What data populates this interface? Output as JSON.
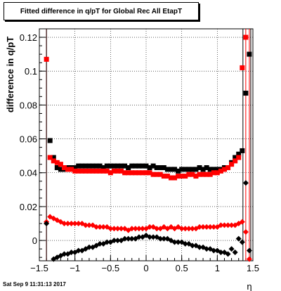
{
  "footer": {
    "timestamp": "Sat Sep  9 11:31:13 2017"
  },
  "chart_data": {
    "type": "scatter",
    "title": "Fitted difference in q/pT for Global Rec All EtapT",
    "xlabel": "η",
    "ylabel": "difference in q/pT",
    "xlim": [
      -1.5,
      1.5
    ],
    "ylim": [
      -0.012,
      0.125
    ],
    "x_ticks": [
      "−1.5",
      "−1",
      "−0.5",
      "0",
      "0.5",
      "1",
      "1.5"
    ],
    "x_tick_values": [
      -1.5,
      -1,
      -0.5,
      0,
      0.5,
      1,
      1.5
    ],
    "y_ticks": [
      "0",
      "0.02",
      "0.04",
      "0.06",
      "0.08",
      "0.1",
      "0.12"
    ],
    "y_tick_values": [
      0,
      0.02,
      0.04,
      0.06,
      0.08,
      0.1,
      0.12
    ],
    "grid": true,
    "colors": {
      "black": "#000000",
      "red": "#ff0000"
    },
    "series": [
      {
        "marker": "square",
        "color": "#000000",
        "x": [
          -1.35,
          -1.3,
          -1.25,
          -1.2,
          -1.15,
          -1.1,
          -1.05,
          -1.0,
          -0.95,
          -0.9,
          -0.85,
          -0.8,
          -0.75,
          -0.7,
          -0.65,
          -0.6,
          -0.55,
          -0.5,
          -0.45,
          -0.4,
          -0.35,
          -0.3,
          -0.25,
          -0.2,
          -0.15,
          -0.1,
          -0.05,
          0.0,
          0.05,
          0.1,
          0.15,
          0.2,
          0.25,
          0.3,
          0.35,
          0.4,
          0.45,
          0.5,
          0.55,
          0.6,
          0.65,
          0.7,
          0.75,
          0.8,
          0.85,
          0.9,
          0.95,
          1.0,
          1.05,
          1.1,
          1.15,
          1.2,
          1.25,
          1.3,
          1.35,
          1.4,
          1.45
        ],
        "y": [
          0.059,
          0.049,
          0.043,
          0.042,
          0.042,
          0.043,
          0.043,
          0.043,
          0.044,
          0.044,
          0.044,
          0.044,
          0.044,
          0.044,
          0.044,
          0.043,
          0.044,
          0.044,
          0.044,
          0.044,
          0.044,
          0.044,
          0.043,
          0.044,
          0.044,
          0.044,
          0.044,
          0.044,
          0.043,
          0.044,
          0.043,
          0.043,
          0.043,
          0.042,
          0.042,
          0.042,
          0.041,
          0.042,
          0.042,
          0.042,
          0.042,
          0.042,
          0.043,
          0.042,
          0.043,
          0.042,
          0.042,
          0.042,
          0.042,
          0.043,
          0.043,
          0.046,
          0.049,
          0.051,
          0.053,
          0.087,
          0.11
        ]
      },
      {
        "marker": "square",
        "color": "#ff0000",
        "x": [
          -1.4,
          -1.35,
          -1.3,
          -1.25,
          -1.2,
          -1.15,
          -1.1,
          -1.05,
          -1.0,
          -0.95,
          -0.9,
          -0.85,
          -0.8,
          -0.75,
          -0.7,
          -0.65,
          -0.6,
          -0.55,
          -0.5,
          -0.45,
          -0.4,
          -0.35,
          -0.3,
          -0.25,
          -0.2,
          -0.15,
          -0.1,
          -0.05,
          0.0,
          0.05,
          0.1,
          0.15,
          0.2,
          0.25,
          0.3,
          0.35,
          0.4,
          0.45,
          0.5,
          0.55,
          0.6,
          0.65,
          0.7,
          0.75,
          0.8,
          0.85,
          0.9,
          0.95,
          1.0,
          1.05,
          1.1,
          1.15,
          1.2,
          1.25,
          1.3,
          1.35,
          1.4
        ],
        "y": [
          0.107,
          0.049,
          0.047,
          0.046,
          0.045,
          0.043,
          0.042,
          0.042,
          0.041,
          0.041,
          0.041,
          0.041,
          0.041,
          0.041,
          0.041,
          0.041,
          0.041,
          0.041,
          0.04,
          0.041,
          0.041,
          0.041,
          0.04,
          0.04,
          0.04,
          0.04,
          0.04,
          0.04,
          0.04,
          0.04,
          0.039,
          0.039,
          0.039,
          0.038,
          0.038,
          0.037,
          0.037,
          0.038,
          0.038,
          0.038,
          0.039,
          0.039,
          0.038,
          0.039,
          0.039,
          0.039,
          0.039,
          0.04,
          0.04,
          0.041,
          0.042,
          0.043,
          0.045,
          0.047,
          0.049,
          0.102,
          0.12
        ]
      },
      {
        "marker": "diamond",
        "color": "#ff0000",
        "x": [
          -1.4,
          -1.35,
          -1.3,
          -1.25,
          -1.2,
          -1.15,
          -1.1,
          -1.05,
          -1.0,
          -0.95,
          -0.9,
          -0.85,
          -0.8,
          -0.75,
          -0.7,
          -0.65,
          -0.6,
          -0.55,
          -0.5,
          -0.45,
          -0.4,
          -0.35,
          -0.3,
          -0.25,
          -0.2,
          -0.15,
          -0.1,
          -0.05,
          0.0,
          0.05,
          0.1,
          0.15,
          0.2,
          0.25,
          0.3,
          0.35,
          0.4,
          0.45,
          0.5,
          0.55,
          0.6,
          0.65,
          0.7,
          0.75,
          0.8,
          0.85,
          0.9,
          0.95,
          1.0,
          1.05,
          1.1,
          1.15,
          1.2,
          1.25,
          1.3,
          1.35,
          1.4,
          1.45
        ],
        "y": [
          0.011,
          0.014,
          0.013,
          0.012,
          0.011,
          0.01,
          0.01,
          0.01,
          0.01,
          0.01,
          0.01,
          0.009,
          0.009,
          0.009,
          0.008,
          0.008,
          0.008,
          0.008,
          0.007,
          0.007,
          0.007,
          0.007,
          0.007,
          0.006,
          0.007,
          0.007,
          0.007,
          0.007,
          0.007,
          0.008,
          0.008,
          0.007,
          0.007,
          0.008,
          0.007,
          0.008,
          0.007,
          0.008,
          0.007,
          0.007,
          0.007,
          0.007,
          0.007,
          0.008,
          0.008,
          0.008,
          0.008,
          0.008,
          0.008,
          0.009,
          0.009,
          0.009,
          0.009,
          0.009,
          0.01,
          0.011,
          0.005,
          -0.011
        ]
      },
      {
        "marker": "diamond",
        "color": "#000000",
        "x": [
          -1.4,
          -1.3,
          -1.25,
          -1.2,
          -1.15,
          -1.1,
          -1.05,
          -1.0,
          -0.95,
          -0.9,
          -0.85,
          -0.8,
          -0.75,
          -0.7,
          -0.65,
          -0.6,
          -0.55,
          -0.5,
          -0.45,
          -0.4,
          -0.35,
          -0.3,
          -0.25,
          -0.2,
          -0.15,
          -0.1,
          -0.05,
          0.0,
          0.05,
          0.1,
          0.15,
          0.2,
          0.25,
          0.3,
          0.35,
          0.4,
          0.45,
          0.5,
          0.55,
          0.6,
          0.65,
          0.7,
          0.75,
          0.8,
          0.85,
          0.9,
          0.95,
          1.0,
          1.05,
          1.1,
          1.15,
          1.2,
          1.25,
          1.3,
          1.35,
          1.4,
          1.45
        ],
        "y": [
          0.01,
          -0.011,
          -0.01,
          -0.009,
          -0.008,
          -0.008,
          -0.007,
          -0.007,
          -0.006,
          -0.006,
          -0.005,
          -0.004,
          -0.004,
          -0.003,
          -0.002,
          -0.002,
          -0.001,
          -0.001,
          0.0,
          0.0,
          0.0,
          0.001,
          0.001,
          0.001,
          0.001,
          0.002,
          0.002,
          0.003,
          0.002,
          0.002,
          0.002,
          0.001,
          0.001,
          0.001,
          0.0,
          -0.001,
          -0.001,
          -0.001,
          -0.002,
          -0.002,
          -0.003,
          -0.003,
          -0.004,
          -0.004,
          -0.005,
          -0.005,
          -0.006,
          -0.006,
          -0.007,
          -0.007,
          -0.008,
          -0.005,
          -0.007,
          0.001,
          -0.001,
          0.034,
          -0.006
        ]
      }
    ]
  }
}
